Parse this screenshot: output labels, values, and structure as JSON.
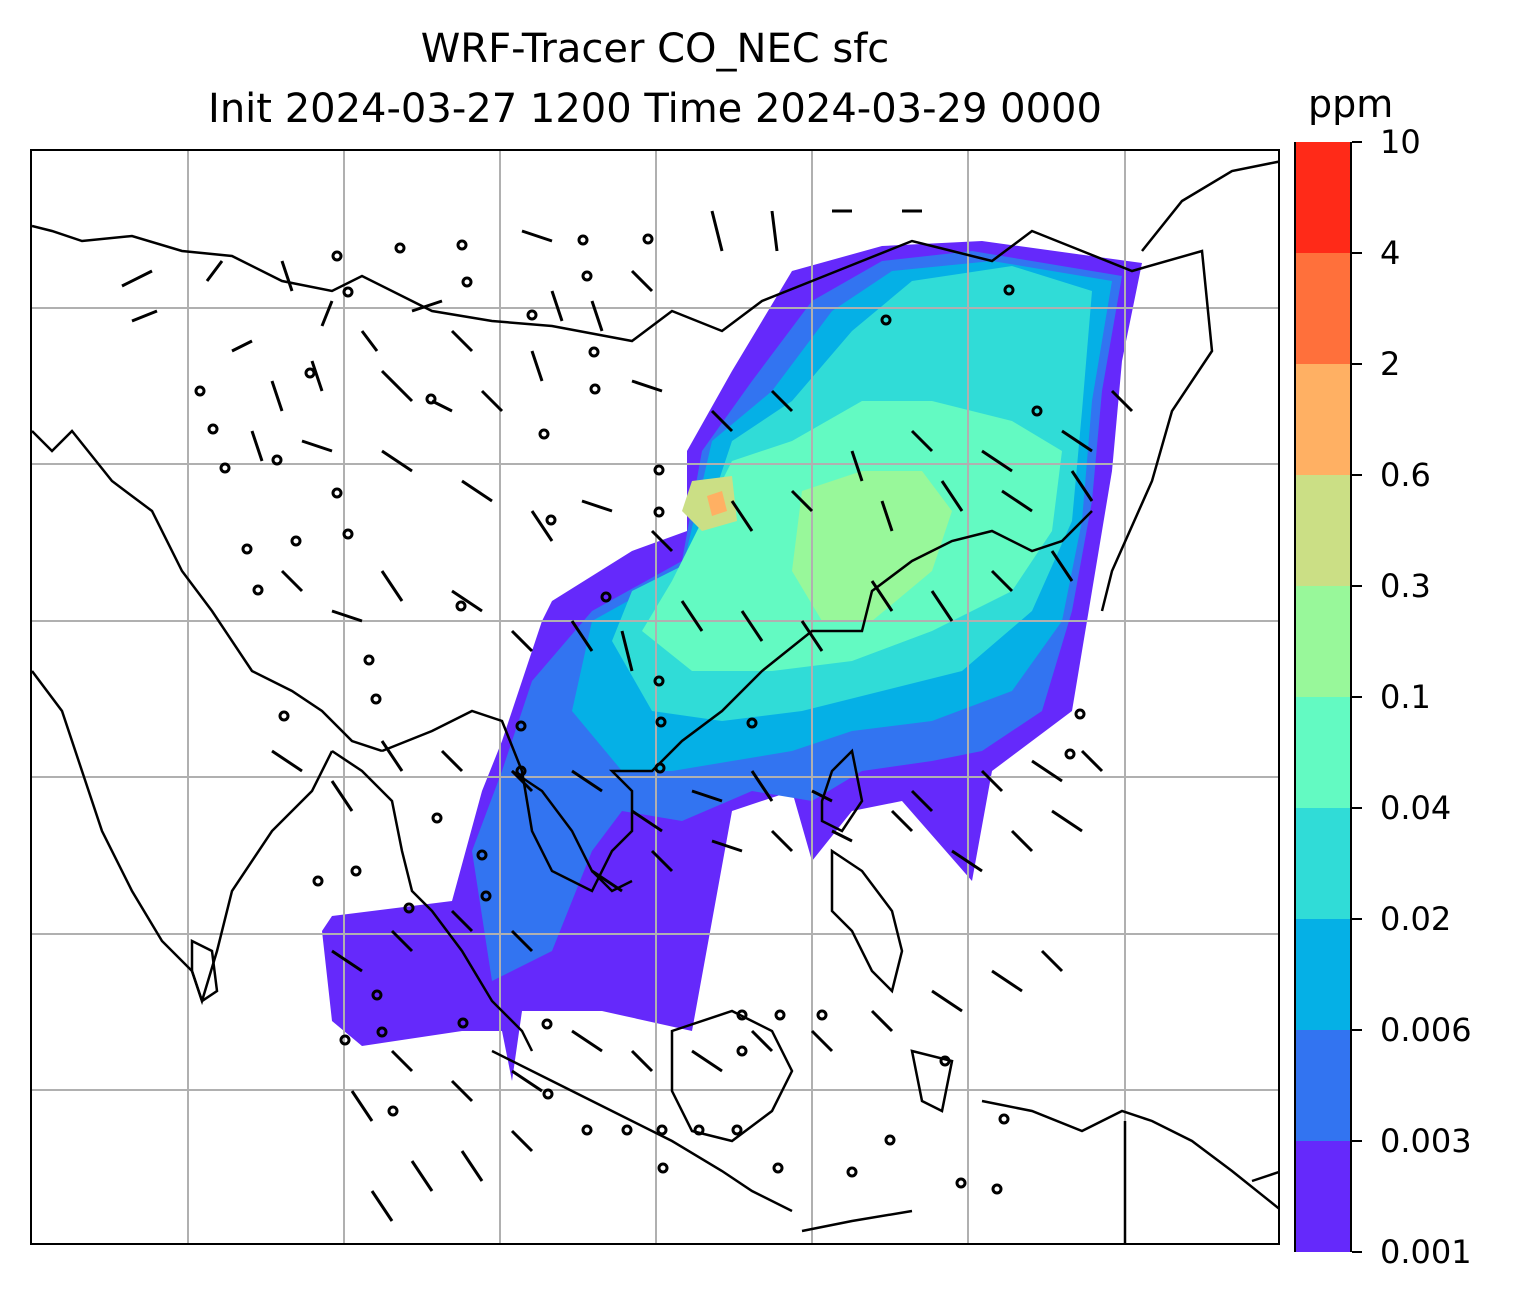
{
  "title": {
    "line1": "WRF-Tracer CO_NEC sfc",
    "line2": "Init 2024-03-27 1200 Time 2024-03-29 0000"
  },
  "colorbar": {
    "unit": "ppm",
    "levels": [
      "0.001",
      "0.003",
      "0.006",
      "0.02",
      "0.04",
      "0.1",
      "0.3",
      "0.6",
      "2",
      "4",
      "10"
    ],
    "colors": [
      "#6529fb",
      "#3274f1",
      "#05b0e6",
      "#30dcd7",
      "#63fac2",
      "#98f89a",
      "#cbdf85",
      "#ffb063",
      "#ff703b",
      "#ff2a18"
    ]
  },
  "map": {
    "gridlines": true,
    "gridline_color": "#b0b0b0",
    "coastline_color": "#000000",
    "symbols": [
      "wind-barbs",
      "calm-wind-circles"
    ]
  }
}
